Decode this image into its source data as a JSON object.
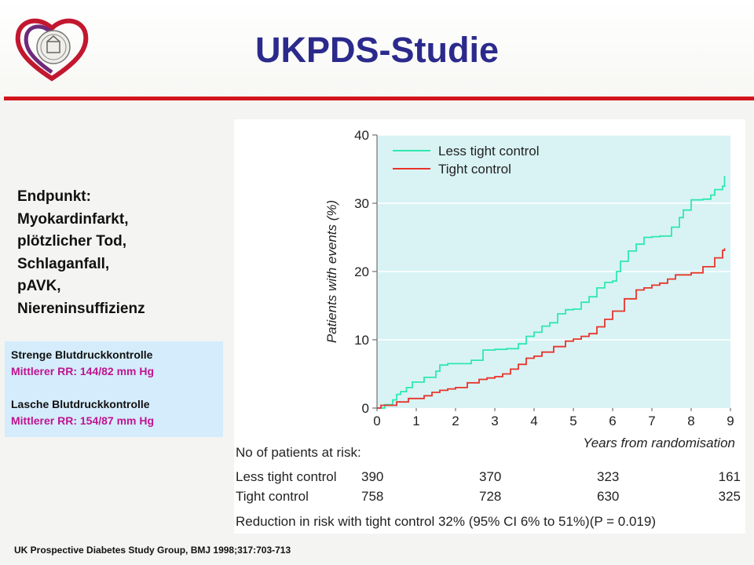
{
  "slide": {
    "title": "UKPDS-Studie",
    "endpoint_lines": [
      "Endpunkt:",
      "Myokardinfarkt,",
      "plötzlicher Tod,",
      "Schlaganfall,",
      "pAVK,",
      "Niereninsuffizienz"
    ],
    "infobox": {
      "strict_label": "Strenge Blutdruckkontrolle",
      "strict_rr": "Mittlerer RR: 144/82 mm Hg",
      "loose_label": "Lasche Blutdruckkontrolle",
      "loose_rr": "Mittlerer RR: 154/87 mm Hg"
    },
    "footer": "UK Prospective Diabetes Study Group,   BMJ 1998;317:703-713",
    "colors": {
      "title": "#2b2a8c",
      "rule": "#d3141c",
      "magenta": "#c0148f",
      "plot_bg": "#d9f3f5"
    }
  },
  "chart_data": {
    "type": "line",
    "ylabel": "Patients with events (%)",
    "xlabel": "Years from randomisation",
    "xlim": [
      0,
      9
    ],
    "ylim": [
      0,
      40
    ],
    "x_ticks": [
      "0",
      "1",
      "2",
      "3",
      "4",
      "5",
      "6",
      "7",
      "8",
      "9"
    ],
    "y_ticks": [
      "0",
      "10",
      "20",
      "30",
      "40"
    ],
    "legend_position": "top-left",
    "series": [
      {
        "name": "Less tight control",
        "color": "#2ee8b0",
        "x": [
          0,
          0.2,
          0.4,
          0.5,
          0.6,
          0.75,
          0.9,
          1.0,
          1.2,
          1.5,
          1.6,
          1.8,
          2.0,
          2.2,
          2.4,
          2.7,
          3.0,
          3.3,
          3.6,
          3.8,
          4.0,
          4.2,
          4.4,
          4.6,
          4.8,
          5.0,
          5.2,
          5.4,
          5.6,
          5.8,
          6.0,
          6.1,
          6.2,
          6.4,
          6.6,
          6.8,
          7.0,
          7.2,
          7.5,
          7.7,
          7.8,
          8.0,
          8.3,
          8.5,
          8.6,
          8.8,
          8.85
        ],
        "y": [
          0,
          0.5,
          1.2,
          2.0,
          2.4,
          3.0,
          3.8,
          3.8,
          4.5,
          5.4,
          6.3,
          6.5,
          6.5,
          6.5,
          7.0,
          8.5,
          8.6,
          8.7,
          9.4,
          10.5,
          11.1,
          12.0,
          12.5,
          13.8,
          14.4,
          14.5,
          15.5,
          16.3,
          17.6,
          18.4,
          18.6,
          20.0,
          21.5,
          23.0,
          24.0,
          25.0,
          25.1,
          25.2,
          26.5,
          27.9,
          29.0,
          30.5,
          30.6,
          31.2,
          32.0,
          32.5,
          34.0
        ]
      },
      {
        "name": "Tight control",
        "color": "#e8342a",
        "x": [
          0,
          0.1,
          0.5,
          0.8,
          1.2,
          1.4,
          1.6,
          1.8,
          2.0,
          2.3,
          2.6,
          2.8,
          3.0,
          3.2,
          3.4,
          3.6,
          3.8,
          4.0,
          4.2,
          4.5,
          4.8,
          5.0,
          5.2,
          5.4,
          5.6,
          5.8,
          6.0,
          6.3,
          6.6,
          6.8,
          7.0,
          7.2,
          7.4,
          7.6,
          8.0,
          8.3,
          8.6,
          8.8,
          8.85
        ],
        "y": [
          0,
          0.4,
          0.9,
          1.4,
          1.8,
          2.3,
          2.6,
          2.8,
          3.0,
          3.7,
          4.2,
          4.4,
          4.6,
          5.0,
          5.7,
          6.4,
          7.3,
          7.6,
          8.2,
          9.0,
          9.8,
          10.1,
          10.5,
          10.9,
          11.9,
          13.0,
          14.2,
          16.0,
          17.3,
          17.6,
          18.0,
          18.3,
          18.9,
          19.5,
          19.8,
          20.7,
          22.0,
          23.1,
          23.4
        ]
      }
    ],
    "risk_table": {
      "heading": "No of patients at risk:",
      "rows": [
        {
          "label": "Less tight control",
          "values": [
            "390",
            "370",
            "323",
            "161"
          ]
        },
        {
          "label": "Tight control",
          "values": [
            "758",
            "728",
            "630",
            "325"
          ]
        }
      ]
    },
    "note": "Reduction in risk with tight control 32% (95% CI 6% to 51%)(P = 0.019)"
  }
}
